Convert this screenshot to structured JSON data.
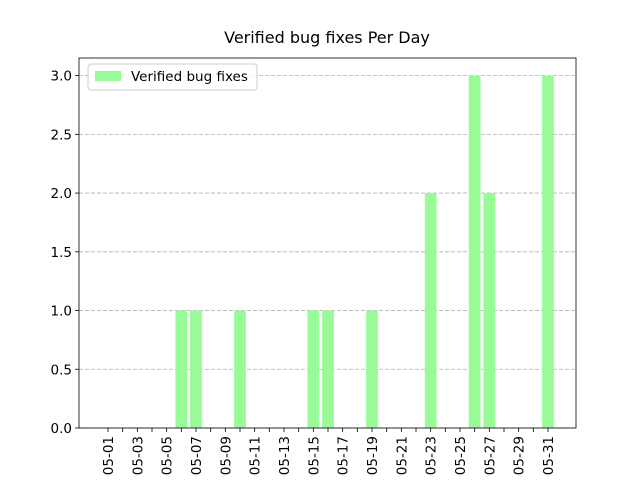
{
  "chart_data": {
    "type": "bar",
    "title": "Verified bug fixes Per Day",
    "categories": [
      "05-01",
      null,
      "05-03",
      null,
      "05-05",
      null,
      "05-07",
      null,
      "05-09",
      null,
      "05-11",
      null,
      "05-13",
      null,
      "05-15",
      null,
      "05-17",
      null,
      "05-19",
      null,
      "05-21",
      null,
      "05-23",
      null,
      "05-25",
      null,
      "05-27",
      null,
      "05-29",
      null,
      "05-31"
    ],
    "series": [
      {
        "name": "Verified bug fixes",
        "color": "#98fb98",
        "values": [
          0,
          0,
          0,
          0,
          0,
          1,
          1,
          0,
          0,
          1,
          0,
          0,
          0,
          0,
          1,
          1,
          0,
          0,
          1,
          0,
          0,
          0,
          2,
          0,
          0,
          3,
          2,
          0,
          0,
          0,
          3
        ]
      }
    ],
    "ylim": [
      0,
      3.15
    ],
    "yticks": [
      {
        "value": 0,
        "label": "0.0"
      },
      0.5,
      {
        "value": 1,
        "label": "1.0"
      },
      1.5,
      {
        "value": 2,
        "label": "2.0"
      },
      2.5,
      {
        "value": 3,
        "label": "3.0"
      }
    ],
    "grid": true,
    "legend": "upper left"
  }
}
